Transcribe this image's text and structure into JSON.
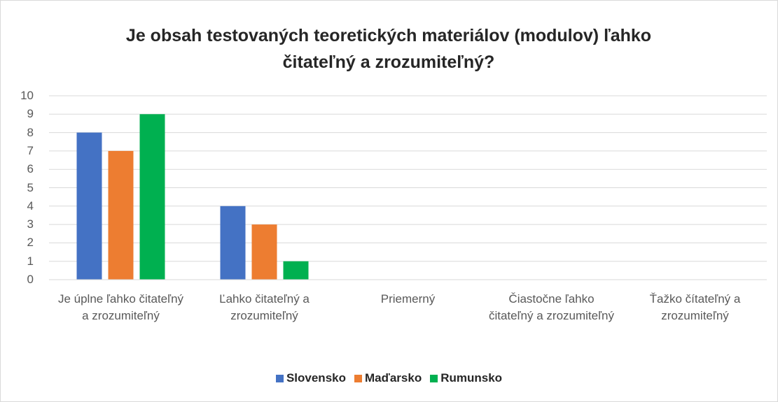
{
  "chart_data": {
    "type": "bar",
    "title": "Je obsah testovaných teoretických materiálov (modulov) ľahko čitateľný a zrozumiteľný?",
    "categories": [
      "Je úplne ľahko čitateľný a zrozumiteľný",
      "Ľahko čitateľný a zrozumiteľný",
      "Priemerný",
      "Čiastočne ľahko čitateľný a zrozumiteľný",
      "Ťažko čítateľný a zrozumiteľný"
    ],
    "series": [
      {
        "name": "Slovensko",
        "color": "#4472c4",
        "values": [
          8,
          4,
          0,
          0,
          0
        ]
      },
      {
        "name": "Maďarsko",
        "color": "#ed7d31",
        "values": [
          7,
          3,
          0,
          0,
          0
        ]
      },
      {
        "name": "Rumunsko",
        "color": "#00b050",
        "values": [
          9,
          1,
          0,
          0,
          0
        ]
      }
    ],
    "ylim": [
      0,
      10
    ],
    "yticks": [
      0,
      1,
      2,
      3,
      4,
      5,
      6,
      7,
      8,
      9,
      10
    ],
    "grid": true,
    "legend": "bottom"
  }
}
